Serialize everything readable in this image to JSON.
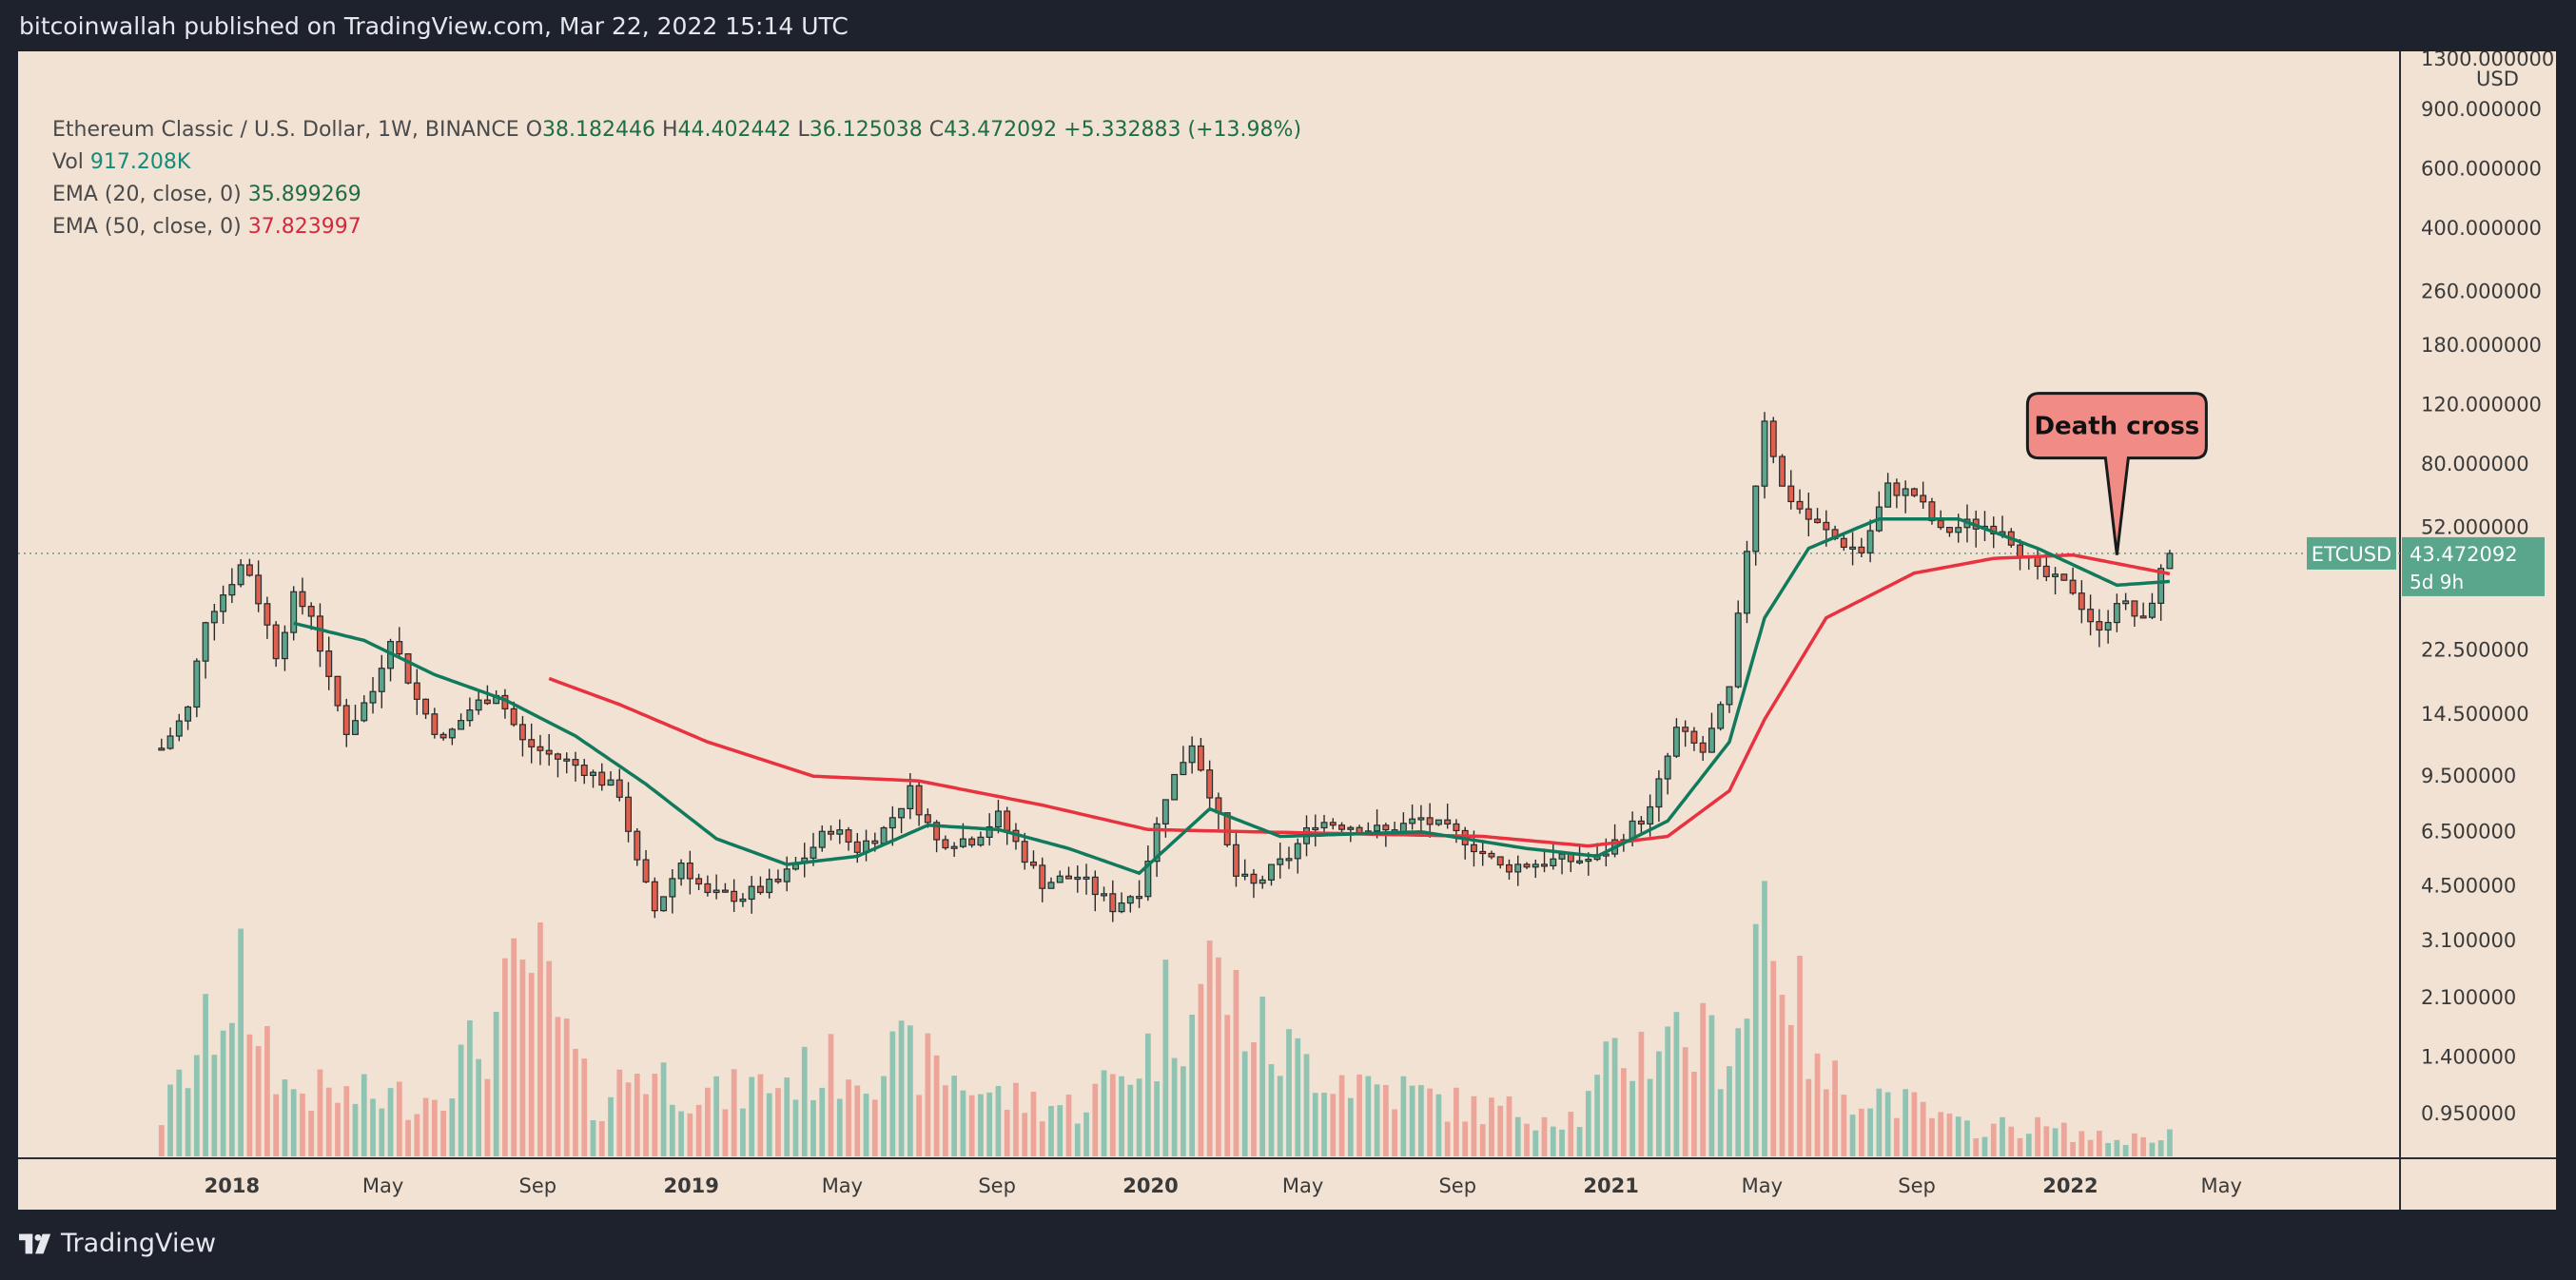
{
  "header": {
    "published_by": "bitcoinwallah published on TradingView.com, Mar 22, 2022 15:14 UTC"
  },
  "legend": {
    "symbol": "Ethereum Classic / U.S. Dollar, 1W, BINANCE",
    "open_label": "O",
    "open": "38.182446",
    "high_label": "H",
    "high": "44.402442",
    "low_label": "L",
    "low": "36.125038",
    "close_label": "C",
    "close": "43.472092",
    "change": "+5.332883 (+13.98%)",
    "vol_label": "Vol",
    "vol": "917.208K",
    "ema20_label": "EMA (20, close, 0)",
    "ema20": "35.899269",
    "ema50_label": "EMA (50, close, 0)",
    "ema50": "37.823997"
  },
  "price_tag": {
    "symbol": "ETCUSD",
    "price": "43.472092",
    "countdown": "5d 9h"
  },
  "annotation": {
    "text": "Death cross"
  },
  "footer": {
    "brand": "TradingView"
  },
  "colors": {
    "up": "#5aa68c",
    "down": "#e0604f",
    "ema20": "#127a5c",
    "ema50": "#e8323f",
    "background": "#f1e2d4"
  },
  "chart_data": {
    "type": "candlestick",
    "interval": "1W",
    "y_scale": "log",
    "y_unit": "USD",
    "y_ticks": [
      "1300.000000",
      "900.000000",
      "600.000000",
      "400.000000",
      "260.000000",
      "180.000000",
      "120.000000",
      "80.000000",
      "52.000000",
      "22.500000",
      "14.500000",
      "9.500000",
      "6.500000",
      "4.500000",
      "3.100000",
      "2.100000",
      "1.400000",
      "0.950000"
    ],
    "x_ticks": [
      {
        "label": "2018",
        "date": "2018-01-01",
        "bold": true
      },
      {
        "label": "May",
        "date": "2018-05-01"
      },
      {
        "label": "Sep",
        "date": "2018-09-01"
      },
      {
        "label": "2019",
        "date": "2019-01-01",
        "bold": true
      },
      {
        "label": "May",
        "date": "2019-05-01"
      },
      {
        "label": "Sep",
        "date": "2019-09-01"
      },
      {
        "label": "2020",
        "date": "2020-01-01",
        "bold": true
      },
      {
        "label": "May",
        "date": "2020-05-01"
      },
      {
        "label": "Sep",
        "date": "2020-09-01"
      },
      {
        "label": "2021",
        "date": "2021-01-01",
        "bold": true
      },
      {
        "label": "May",
        "date": "2021-05-01"
      },
      {
        "label": "Sep",
        "date": "2021-09-01"
      },
      {
        "label": "2022",
        "date": "2022-01-01",
        "bold": true
      },
      {
        "label": "May",
        "date": "2022-05-01"
      }
    ],
    "x_range": [
      "2017-07-15",
      "2022-09-20"
    ],
    "price_anchors": [
      [
        "2017-11-06",
        11.5
      ],
      [
        "2017-11-27",
        15
      ],
      [
        "2017-12-11",
        28
      ],
      [
        "2017-12-25",
        33
      ],
      [
        "2018-01-08",
        40
      ],
      [
        "2018-01-15",
        38
      ],
      [
        "2018-02-05",
        22
      ],
      [
        "2018-02-19",
        32
      ],
      [
        "2018-03-05",
        29
      ],
      [
        "2018-03-19",
        18
      ],
      [
        "2018-04-02",
        13
      ],
      [
        "2018-04-23",
        17
      ],
      [
        "2018-05-07",
        25
      ],
      [
        "2018-05-28",
        16
      ],
      [
        "2018-06-18",
        12
      ],
      [
        "2018-07-09",
        15
      ],
      [
        "2018-07-30",
        17
      ],
      [
        "2018-08-20",
        12
      ],
      [
        "2018-09-10",
        11
      ],
      [
        "2018-10-08",
        10
      ],
      [
        "2018-11-05",
        8.5
      ],
      [
        "2018-11-19",
        5.2
      ],
      [
        "2018-12-03",
        3.8
      ],
      [
        "2018-12-24",
        5.3
      ],
      [
        "2019-01-14",
        4.2
      ],
      [
        "2019-02-11",
        4.2
      ],
      [
        "2019-03-11",
        4.6
      ],
      [
        "2019-04-01",
        5.5
      ],
      [
        "2019-04-22",
        6.7
      ],
      [
        "2019-05-13",
        5.8
      ],
      [
        "2019-06-03",
        6.6
      ],
      [
        "2019-06-24",
        8.6
      ],
      [
        "2019-07-15",
        6.1
      ],
      [
        "2019-08-12",
        6.2
      ],
      [
        "2019-09-02",
        7.2
      ],
      [
        "2019-10-07",
        4.6
      ],
      [
        "2019-11-04",
        4.8
      ],
      [
        "2019-12-02",
        3.9
      ],
      [
        "2019-12-23",
        4.4
      ],
      [
        "2020-01-13",
        8.4
      ],
      [
        "2020-02-03",
        12
      ],
      [
        "2020-02-17",
        8.6
      ],
      [
        "2020-03-09",
        4.8
      ],
      [
        "2020-03-23",
        4.5
      ],
      [
        "2020-04-20",
        5.5
      ],
      [
        "2020-05-11",
        7
      ],
      [
        "2020-06-08",
        6.8
      ],
      [
        "2020-07-06",
        6.5
      ],
      [
        "2020-08-03",
        7.1
      ],
      [
        "2020-09-07",
        6.2
      ],
      [
        "2020-10-05",
        5.1
      ],
      [
        "2020-11-09",
        5.3
      ],
      [
        "2020-12-21",
        5.4
      ],
      [
        "2021-01-11",
        6.4
      ],
      [
        "2021-02-01",
        7.5
      ],
      [
        "2021-02-22",
        13
      ],
      [
        "2021-03-15",
        11.2
      ],
      [
        "2021-04-05",
        17
      ],
      [
        "2021-04-19",
        45
      ],
      [
        "2021-05-03",
        110
      ],
      [
        "2021-05-17",
        68
      ],
      [
        "2021-06-07",
        55
      ],
      [
        "2021-06-28",
        48
      ],
      [
        "2021-07-19",
        44
      ],
      [
        "2021-08-09",
        68
      ],
      [
        "2021-08-30",
        65
      ],
      [
        "2021-09-20",
        50
      ],
      [
        "2021-10-11",
        53
      ],
      [
        "2021-11-08",
        52
      ],
      [
        "2021-12-06",
        38
      ],
      [
        "2022-01-03",
        34
      ],
      [
        "2022-01-24",
        25
      ],
      [
        "2022-02-07",
        32
      ],
      [
        "2022-02-28",
        27
      ],
      [
        "2022-03-14",
        38
      ],
      [
        "2022-03-21",
        43.47
      ]
    ],
    "ema20_anchors": [
      [
        "2018-02-19",
        27
      ],
      [
        "2018-04-16",
        24
      ],
      [
        "2018-06-11",
        19
      ],
      [
        "2018-08-06",
        16
      ],
      [
        "2018-10-01",
        12.5
      ],
      [
        "2018-11-26",
        9
      ],
      [
        "2019-01-21",
        6.2
      ],
      [
        "2019-03-18",
        5.2
      ],
      [
        "2019-05-13",
        5.5
      ],
      [
        "2019-07-08",
        6.8
      ],
      [
        "2019-09-02",
        6.6
      ],
      [
        "2019-10-28",
        5.8
      ],
      [
        "2019-12-23",
        4.9
      ],
      [
        "2020-02-17",
        7.6
      ],
      [
        "2020-04-13",
        6.3
      ],
      [
        "2020-06-08",
        6.4
      ],
      [
        "2020-08-03",
        6.5
      ],
      [
        "2020-10-26",
        5.8
      ],
      [
        "2020-12-21",
        5.5
      ],
      [
        "2021-02-15",
        7.0
      ],
      [
        "2021-04-05",
        12
      ],
      [
        "2021-05-03",
        28
      ],
      [
        "2021-06-07",
        45
      ],
      [
        "2021-08-02",
        55
      ],
      [
        "2021-10-04",
        55
      ],
      [
        "2021-12-06",
        45
      ],
      [
        "2022-02-07",
        35
      ],
      [
        "2022-03-21",
        35.9
      ]
    ],
    "ema50_anchors": [
      [
        "2018-09-10",
        18.5
      ],
      [
        "2018-11-05",
        15.5
      ],
      [
        "2019-01-14",
        12
      ],
      [
        "2019-04-08",
        9.5
      ],
      [
        "2019-07-01",
        9.2
      ],
      [
        "2019-10-07",
        7.8
      ],
      [
        "2019-12-30",
        6.6
      ],
      [
        "2020-03-23",
        6.5
      ],
      [
        "2020-06-22",
        6.4
      ],
      [
        "2020-09-21",
        6.3
      ],
      [
        "2020-12-14",
        5.9
      ],
      [
        "2021-02-15",
        6.3
      ],
      [
        "2021-04-05",
        8.6
      ],
      [
        "2021-05-03",
        14
      ],
      [
        "2021-06-21",
        28
      ],
      [
        "2021-08-30",
        38
      ],
      [
        "2021-11-01",
        42
      ],
      [
        "2022-01-03",
        43
      ],
      [
        "2022-03-21",
        37.82
      ]
    ],
    "volume_anchors": [
      [
        "2017-11-06",
        0.2
      ],
      [
        "2017-12-11",
        0.6
      ],
      [
        "2018-01-08",
        0.95
      ],
      [
        "2018-02-12",
        0.35
      ],
      [
        "2018-04-02",
        0.3
      ],
      [
        "2018-06-04",
        0.3
      ],
      [
        "2018-07-23",
        0.6
      ],
      [
        "2018-08-27",
        1.0
      ],
      [
        "2018-10-15",
        0.25
      ],
      [
        "2018-11-19",
        0.45
      ],
      [
        "2019-01-21",
        0.3
      ],
      [
        "2019-04-22",
        0.45
      ],
      [
        "2019-06-24",
        0.5
      ],
      [
        "2019-09-02",
        0.3
      ],
      [
        "2019-11-04",
        0.25
      ],
      [
        "2020-01-13",
        0.6
      ],
      [
        "2020-02-17",
        0.95
      ],
      [
        "2020-04-06",
        0.55
      ],
      [
        "2020-06-08",
        0.4
      ],
      [
        "2020-09-07",
        0.25
      ],
      [
        "2020-12-07",
        0.2
      ],
      [
        "2021-01-04",
        0.5
      ],
      [
        "2021-02-22",
        0.6
      ],
      [
        "2021-04-05",
        0.55
      ],
      [
        "2021-05-03",
        1.4
      ],
      [
        "2021-06-14",
        0.4
      ],
      [
        "2021-08-09",
        0.3
      ],
      [
        "2021-10-04",
        0.15
      ],
      [
        "2021-12-06",
        0.15
      ],
      [
        "2022-02-07",
        0.08
      ],
      [
        "2022-03-21",
        0.12
      ]
    ],
    "volume_peak_marks": [
      [
        "2018-01-15",
        0.62
      ],
      [
        "2018-08-20",
        1.0
      ],
      [
        "2020-01-13",
        1.0
      ],
      [
        "2020-02-03",
        0.72
      ],
      [
        "2021-02-15",
        0.66
      ],
      [
        "2021-04-19",
        0.7
      ],
      [
        "2021-05-03",
        1.4
      ]
    ],
    "annotations": [
      {
        "text": "Death cross",
        "date": "2022-02-07",
        "price": 43
      }
    ]
  }
}
